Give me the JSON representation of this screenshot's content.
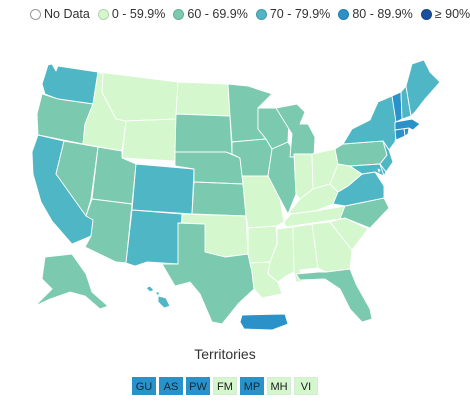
{
  "legend": [
    {
      "label": "No Data",
      "color": "#ffffff",
      "icon": "no-data-circle"
    },
    {
      "label": "0 - 59.9%",
      "color": "#d4f7cd"
    },
    {
      "label": "60 - 69.9%",
      "color": "#7bcab0"
    },
    {
      "label": "70 - 79.9%",
      "color": "#4fb6c6"
    },
    {
      "label": "80 - 89.9%",
      "color": "#2a92c8"
    },
    {
      "label": "≥ 90%",
      "color": "#18509d"
    }
  ],
  "states": [
    {
      "code": "WA",
      "color": "#4fb6c6"
    },
    {
      "code": "OR",
      "color": "#7bcab0"
    },
    {
      "code": "CA",
      "color": "#4fb6c6"
    },
    {
      "code": "NV",
      "color": "#7bcab0"
    },
    {
      "code": "ID",
      "color": "#d4f7cd"
    },
    {
      "code": "MT",
      "color": "#d4f7cd"
    },
    {
      "code": "WY",
      "color": "#d4f7cd"
    },
    {
      "code": "UT",
      "color": "#7bcab0"
    },
    {
      "code": "AZ",
      "color": "#7bcab0"
    },
    {
      "code": "CO",
      "color": "#4fb6c6"
    },
    {
      "code": "NM",
      "color": "#4fb6c6"
    },
    {
      "code": "ND",
      "color": "#d4f7cd"
    },
    {
      "code": "SD",
      "color": "#7bcab0"
    },
    {
      "code": "NE",
      "color": "#7bcab0"
    },
    {
      "code": "KS",
      "color": "#7bcab0"
    },
    {
      "code": "OK",
      "color": "#d4f7cd"
    },
    {
      "code": "TX",
      "color": "#7bcab0"
    },
    {
      "code": "MN",
      "color": "#7bcab0"
    },
    {
      "code": "IA",
      "color": "#7bcab0"
    },
    {
      "code": "MO",
      "color": "#d4f7cd"
    },
    {
      "code": "AR",
      "color": "#d4f7cd"
    },
    {
      "code": "LA",
      "color": "#d4f7cd"
    },
    {
      "code": "WI",
      "color": "#7bcab0"
    },
    {
      "code": "IL",
      "color": "#7bcab0"
    },
    {
      "code": "MI",
      "color": "#7bcab0"
    },
    {
      "code": "IN",
      "color": "#d4f7cd"
    },
    {
      "code": "OH",
      "color": "#d4f7cd"
    },
    {
      "code": "KY",
      "color": "#d4f7cd"
    },
    {
      "code": "TN",
      "color": "#d4f7cd"
    },
    {
      "code": "MS",
      "color": "#d4f7cd"
    },
    {
      "code": "AL",
      "color": "#d4f7cd"
    },
    {
      "code": "GA",
      "color": "#d4f7cd"
    },
    {
      "code": "FL",
      "color": "#7bcab0"
    },
    {
      "code": "SC",
      "color": "#d4f7cd"
    },
    {
      "code": "NC",
      "color": "#7bcab0"
    },
    {
      "code": "VA",
      "color": "#4fb6c6"
    },
    {
      "code": "WV",
      "color": "#d4f7cd"
    },
    {
      "code": "PA",
      "color": "#7bcab0"
    },
    {
      "code": "NY",
      "color": "#4fb6c6"
    },
    {
      "code": "NJ",
      "color": "#4fb6c6"
    },
    {
      "code": "MD",
      "color": "#4fb6c6"
    },
    {
      "code": "DE",
      "color": "#4fb6c6"
    },
    {
      "code": "CT",
      "color": "#2a92c8"
    },
    {
      "code": "RI",
      "color": "#2a92c8"
    },
    {
      "code": "MA",
      "color": "#2a92c8"
    },
    {
      "code": "VT",
      "color": "#2a92c8"
    },
    {
      "code": "NH",
      "color": "#4fb6c6"
    },
    {
      "code": "ME",
      "color": "#4fb6c6"
    },
    {
      "code": "AK",
      "color": "#7bcab0"
    },
    {
      "code": "HI",
      "color": "#4fb6c6"
    },
    {
      "code": "PR",
      "color": "#2a92c8"
    },
    {
      "code": "DC",
      "color": "#4fb6c6"
    }
  ],
  "territories_title": "Territories",
  "territories": [
    {
      "code": "GU",
      "color": "#2a92c8"
    },
    {
      "code": "AS",
      "color": "#2a92c8"
    },
    {
      "code": "PW",
      "color": "#2a92c8"
    },
    {
      "code": "FM",
      "color": "#d4f7cd"
    },
    {
      "code": "MP",
      "color": "#2a92c8"
    },
    {
      "code": "MH",
      "color": "#d4f7cd"
    },
    {
      "code": "VI",
      "color": "#d4f7cd"
    }
  ]
}
